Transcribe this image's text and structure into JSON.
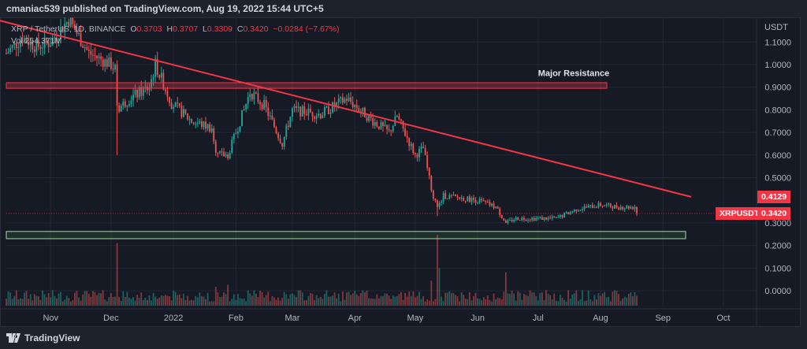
{
  "header": {
    "publisher_line": "cmaniac539 published on TradingView.com, Aug 19, 2022 15:44 UTC+5"
  },
  "legend": {
    "symbol": "XRP / TetherUS, 1D, BINANCE",
    "o_label": "O",
    "o": "0.3703",
    "h_label": "H",
    "h": "0.3707",
    "l_label": "L",
    "l": "0.3309",
    "c_label": "C",
    "c": "0.3420",
    "change": "−0.0284 (−7.67%)",
    "vol_label": "Vol",
    "vol": "254.371M"
  },
  "footer": {
    "brand": "TradingView"
  },
  "colors": {
    "up": "#26a69a",
    "down": "#ef5350",
    "line": "#f23645",
    "support": "#a5d6a7"
  },
  "chart_data": {
    "type": "candlestick",
    "title": "XRP / TetherUS, 1D, BINANCE",
    "y_unit": "USDT",
    "ylim": [
      -0.065,
      1.21
    ],
    "y_ticks": [
      "1.1000",
      "1.0000",
      "0.9000",
      "0.8000",
      "0.7000",
      "0.6000",
      "0.5000",
      "0.3000",
      "0.2000",
      "0.1000",
      "0.0000"
    ],
    "y_tick_values": [
      1.1,
      1.0,
      0.9,
      0.8,
      0.7,
      0.6,
      0.5,
      0.3,
      0.2,
      0.1,
      0.0
    ],
    "x_days_range": [
      0,
      370
    ],
    "x_ticks": [
      {
        "label": "Nov",
        "day": 22
      },
      {
        "label": "Dec",
        "day": 52
      },
      {
        "label": "2022",
        "day": 83
      },
      {
        "label": "Feb",
        "day": 114
      },
      {
        "label": "Mar",
        "day": 142
      },
      {
        "label": "Apr",
        "day": 173
      },
      {
        "label": "May",
        "day": 203
      },
      {
        "label": "Jun",
        "day": 234
      },
      {
        "label": "Jul",
        "day": 264
      },
      {
        "label": "Aug",
        "day": 295
      },
      {
        "label": "Sep",
        "day": 326
      },
      {
        "label": "Oct",
        "day": 356
      }
    ],
    "close_anchors": [
      [
        0,
        1.05
      ],
      [
        8,
        1.12
      ],
      [
        15,
        1.08
      ],
      [
        22,
        1.1
      ],
      [
        31,
        1.2
      ],
      [
        41,
        1.05
      ],
      [
        52,
        1.0
      ],
      [
        54,
        0.98
      ],
      [
        55,
        0.8
      ],
      [
        61,
        0.85
      ],
      [
        71,
        0.9
      ],
      [
        74,
        1.0
      ],
      [
        82,
        0.83
      ],
      [
        92,
        0.75
      ],
      [
        102,
        0.72
      ],
      [
        104,
        0.6
      ],
      [
        110,
        0.6
      ],
      [
        118,
        0.8
      ],
      [
        121,
        0.88
      ],
      [
        128,
        0.82
      ],
      [
        137,
        0.65
      ],
      [
        142,
        0.8
      ],
      [
        156,
        0.78
      ],
      [
        169,
        0.85
      ],
      [
        173,
        0.82
      ],
      [
        182,
        0.75
      ],
      [
        190,
        0.7
      ],
      [
        194,
        0.77
      ],
      [
        203,
        0.6
      ],
      [
        207,
        0.63
      ],
      [
        211,
        0.45
      ],
      [
        214,
        0.36
      ],
      [
        217,
        0.42
      ],
      [
        234,
        0.4
      ],
      [
        243,
        0.37
      ],
      [
        248,
        0.3
      ],
      [
        253,
        0.32
      ],
      [
        264,
        0.32
      ],
      [
        273,
        0.32
      ],
      [
        283,
        0.36
      ],
      [
        295,
        0.38
      ],
      [
        304,
        0.37
      ],
      [
        311,
        0.37
      ],
      [
        312,
        0.3703
      ],
      [
        313,
        0.342
      ]
    ],
    "volume_spikes_M": [
      [
        55,
        1500
      ],
      [
        214,
        1700
      ],
      [
        215,
        900
      ],
      [
        248,
        800
      ],
      [
        104,
        450
      ],
      [
        110,
        500
      ],
      [
        211,
        600
      ]
    ],
    "volume_base_M": 250,
    "annotations": {
      "resistance": {
        "label": "Major Resistance",
        "range": [
          0.895,
          0.92
        ]
      },
      "support": {
        "range": [
          0.23,
          0.262
        ]
      },
      "trendline": {
        "from": [
          -10,
          1.21
        ],
        "to": [
          340,
          0.415
        ]
      },
      "price_tags": [
        {
          "text": "0.4129",
          "value": 0.4129
        },
        {
          "symbol": "XRPUSDT",
          "text": "0.3420",
          "value": 0.342
        }
      ]
    }
  }
}
